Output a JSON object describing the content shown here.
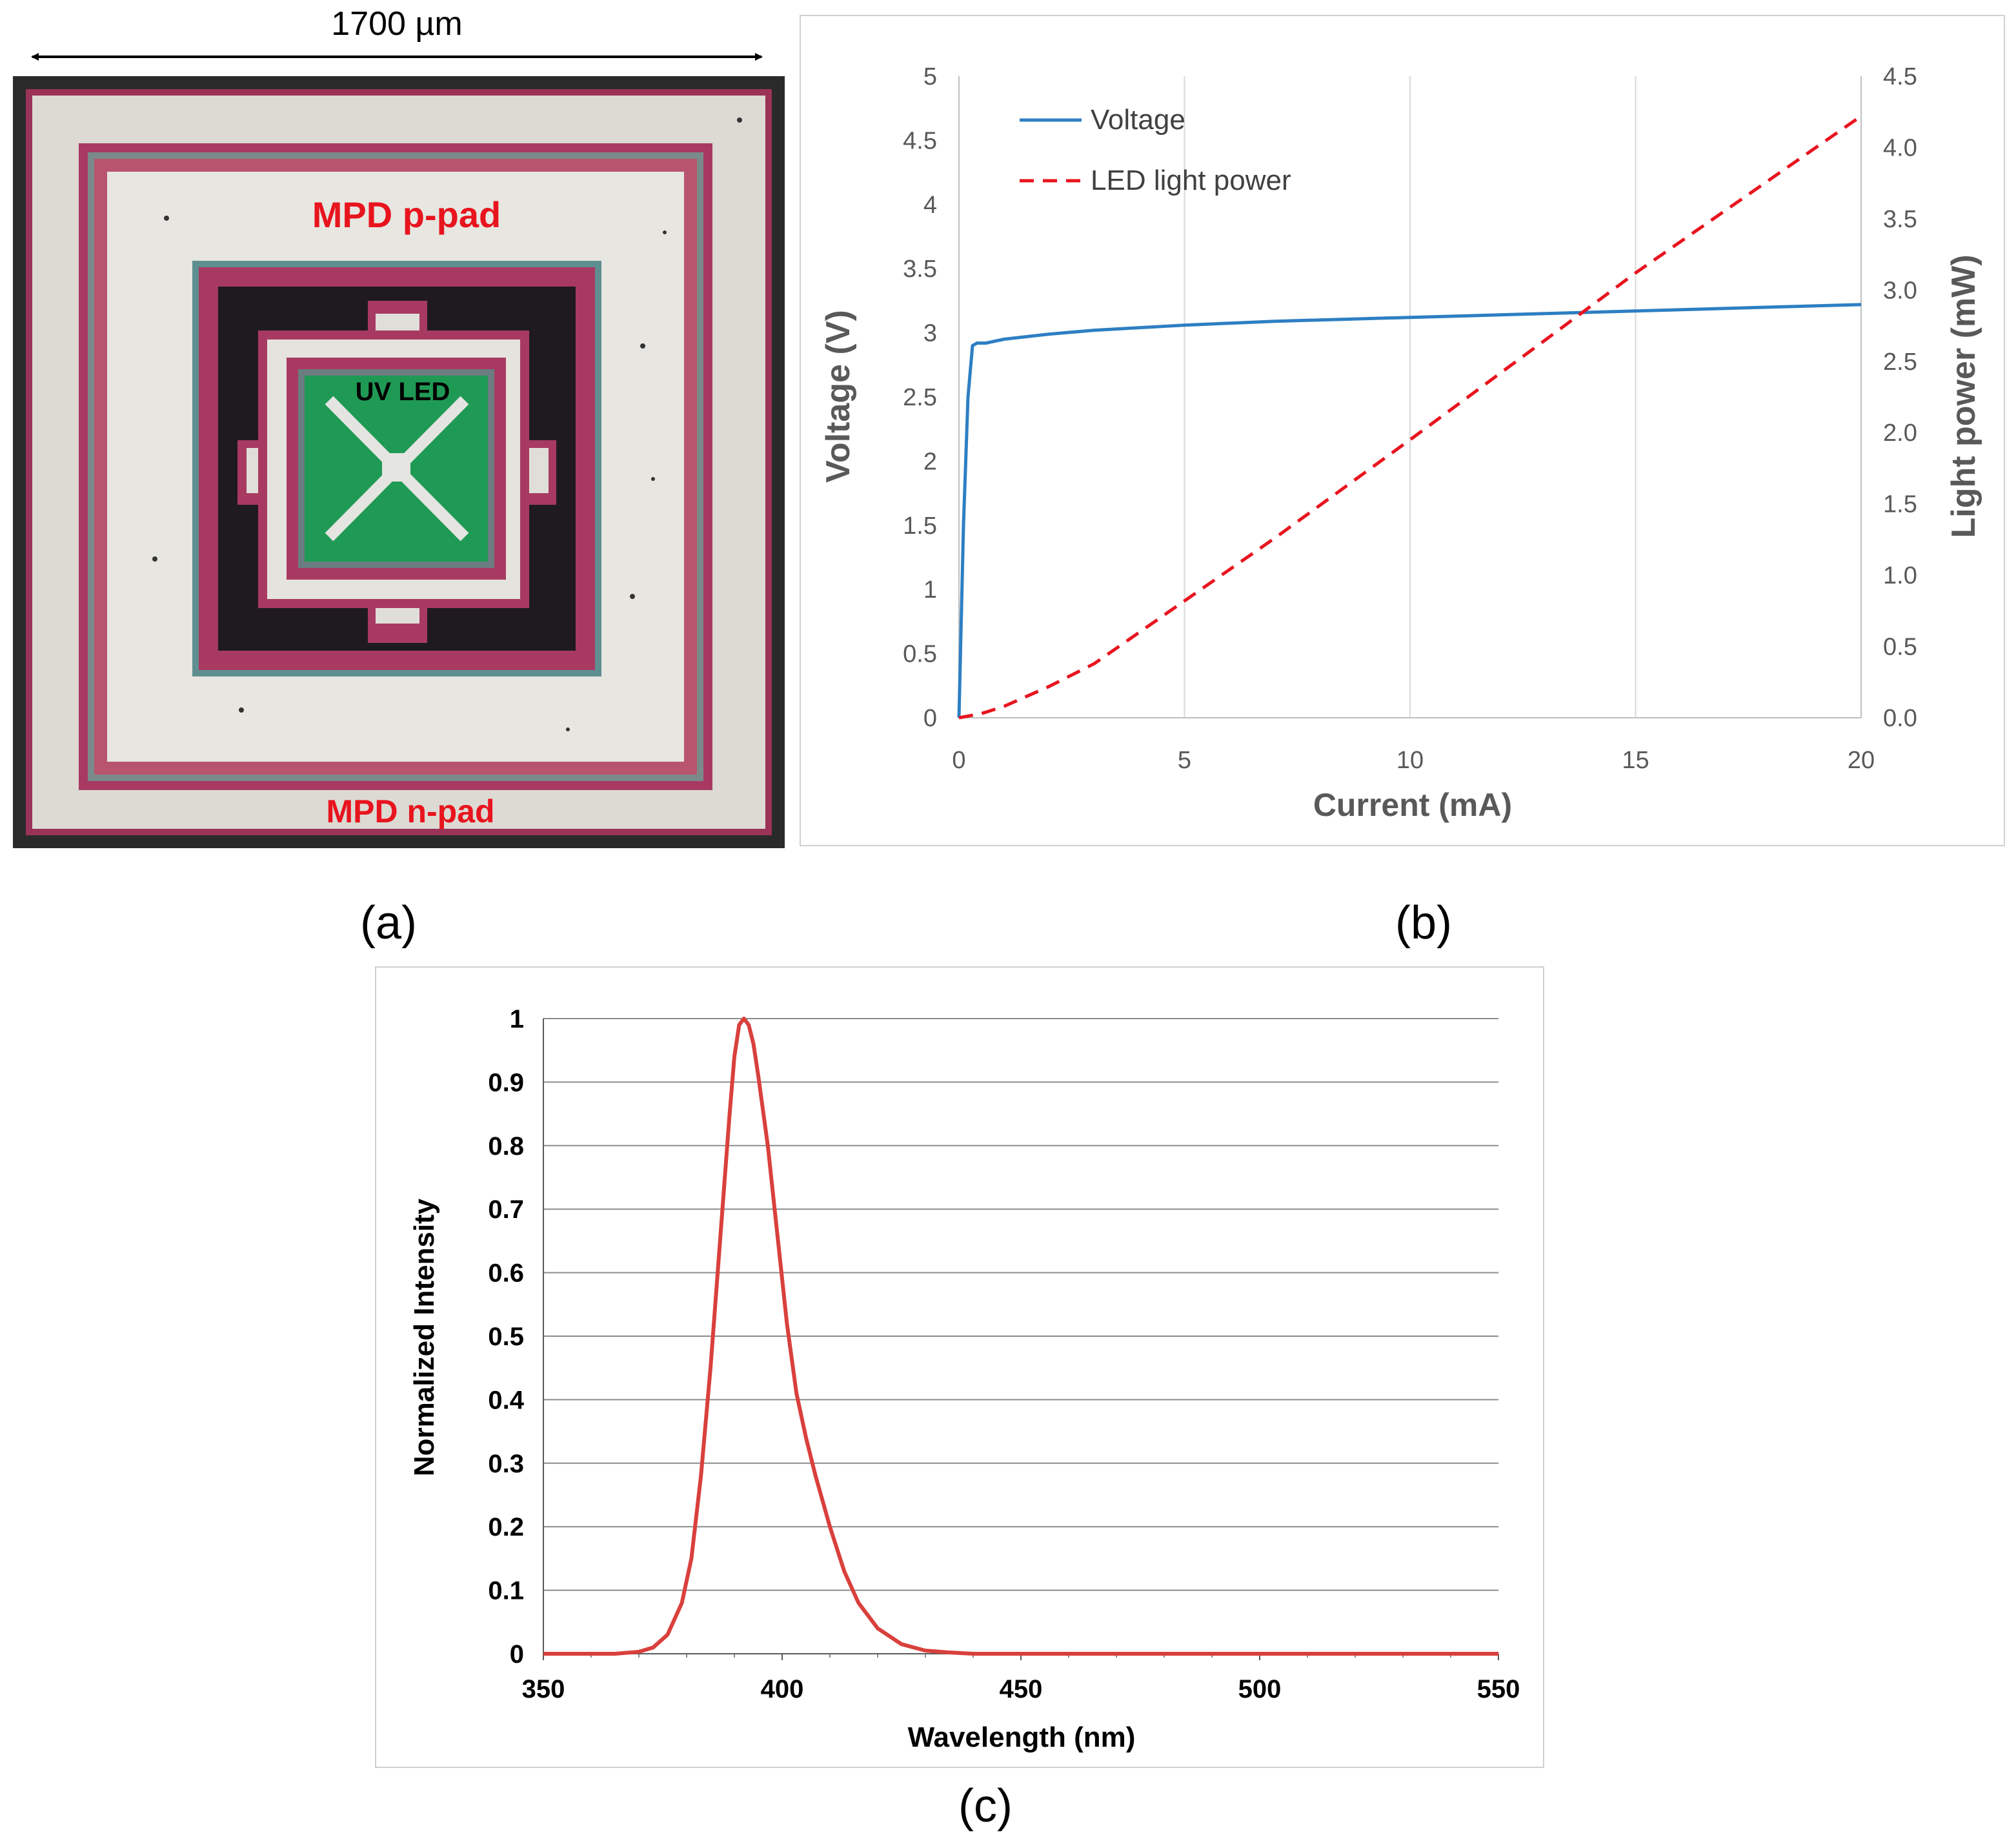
{
  "panel_a": {
    "caption": "(a)",
    "scale_label": "1700 µm",
    "labels": {
      "p_pad": "MPD p-pad",
      "n_pad": "MPD n-pad",
      "led": "UV LED"
    },
    "colors": {
      "frame": "#2a2a2a",
      "pad": "#e4e2dc",
      "ring": "#a83a62",
      "led": "#1f9a55",
      "trench": "#1e1a20",
      "label_red": "#e8141e"
    }
  },
  "panel_b": {
    "caption": "(b)"
  },
  "panel_c": {
    "caption": "(c)"
  },
  "chart_data": [
    {
      "id": "b",
      "type": "line",
      "xlabel": "Current (mA)",
      "ylabel": "Voltage (V)",
      "y2label": "Light power (mW)",
      "xlim": [
        0,
        20
      ],
      "ylim": [
        0,
        5
      ],
      "y2lim": [
        0,
        4.5
      ],
      "xticks": [
        0,
        5,
        10,
        15,
        20
      ],
      "yticks": [
        0,
        0.5,
        1,
        1.5,
        2,
        2.5,
        3,
        3.5,
        4,
        4.5,
        5
      ],
      "y2ticks": [
        "0.0",
        "0.5",
        "1.0",
        "1.5",
        "2.0",
        "2.5",
        "3.0",
        "3.5",
        "4.0",
        "4.5"
      ],
      "grid": "vertical",
      "legend": "top-left",
      "series": [
        {
          "name": "Voltage",
          "axis": "left",
          "color": "#2e7fc3",
          "dash": "solid",
          "x": [
            0,
            0.1,
            0.2,
            0.3,
            0.4,
            0.6,
            1,
            2,
            3,
            5,
            7,
            10,
            13,
            15,
            18,
            20
          ],
          "y": [
            0,
            1.5,
            2.5,
            2.9,
            2.92,
            2.92,
            2.95,
            2.99,
            3.02,
            3.06,
            3.09,
            3.12,
            3.15,
            3.17,
            3.2,
            3.22
          ]
        },
        {
          "name": "LED light power",
          "axis": "right",
          "color": "#e8141e",
          "dash": "dashed",
          "x": [
            0,
            0.5,
            1,
            2,
            3,
            5,
            7,
            10,
            13,
            15,
            18,
            20
          ],
          "y": [
            0,
            0.03,
            0.08,
            0.22,
            0.38,
            0.82,
            1.26,
            1.95,
            2.65,
            3.12,
            3.78,
            4.22
          ]
        }
      ]
    },
    {
      "id": "c",
      "type": "line",
      "xlabel": "Wavelength (nm)",
      "ylabel": "Normalized Intensity",
      "xlim": [
        350,
        550
      ],
      "ylim": [
        0,
        1
      ],
      "xticks": [
        350,
        400,
        450,
        500,
        550
      ],
      "yticks": [
        0,
        0.1,
        0.2,
        0.3,
        0.4,
        0.5,
        0.6,
        0.7,
        0.8,
        0.9,
        1
      ],
      "grid": "horizontal",
      "series": [
        {
          "color": "#d9403c",
          "x": [
            350,
            365,
            370,
            373,
            376,
            379,
            381,
            383,
            385,
            387,
            389,
            390,
            391,
            392,
            393,
            394,
            395,
            397,
            399,
            401,
            403,
            405,
            407,
            410,
            413,
            416,
            420,
            425,
            430,
            435,
            440,
            450,
            500,
            550
          ],
          "y": [
            0,
            0,
            0.003,
            0.01,
            0.03,
            0.08,
            0.15,
            0.28,
            0.45,
            0.65,
            0.85,
            0.94,
            0.99,
            1.0,
            0.99,
            0.96,
            0.91,
            0.8,
            0.66,
            0.52,
            0.41,
            0.34,
            0.28,
            0.2,
            0.13,
            0.08,
            0.04,
            0.015,
            0.005,
            0.002,
            0,
            0,
            0,
            0
          ]
        }
      ]
    }
  ]
}
